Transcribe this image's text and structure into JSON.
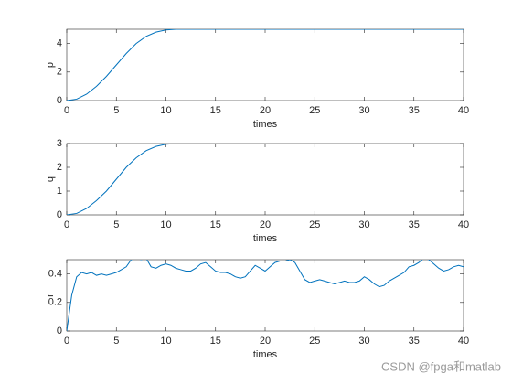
{
  "chart_data": [
    {
      "type": "line",
      "xlabel": "times",
      "ylabel": "p",
      "x": [
        0,
        1,
        2,
        3,
        4,
        5,
        6,
        7,
        8,
        9,
        10,
        11,
        12,
        13,
        14,
        15,
        16,
        17,
        18,
        19,
        20,
        21,
        22,
        23,
        24,
        25,
        26,
        27,
        28,
        29,
        30,
        31,
        32,
        33,
        34,
        35,
        36,
        37,
        38,
        39,
        40
      ],
      "series": [
        {
          "color": "#0072bd",
          "values": [
            0,
            0.1,
            0.45,
            1.0,
            1.7,
            2.5,
            3.3,
            4.0,
            4.5,
            4.8,
            4.95,
            5,
            5,
            5,
            5,
            5,
            5,
            5,
            5,
            5,
            5,
            5,
            5,
            5,
            5,
            5,
            5,
            5,
            5,
            5,
            5,
            5,
            5,
            5,
            5,
            5,
            5,
            5,
            5,
            5,
            5
          ]
        }
      ],
      "xlim": [
        0,
        40
      ],
      "xticks": [
        0,
        5,
        10,
        15,
        20,
        25,
        30,
        35,
        40
      ],
      "ylim": [
        0,
        5
      ],
      "yticks": [
        0,
        2,
        4
      ]
    },
    {
      "type": "line",
      "xlabel": "times",
      "ylabel": "q",
      "x": [
        0,
        1,
        2,
        3,
        4,
        5,
        6,
        7,
        8,
        9,
        10,
        11,
        12,
        13,
        14,
        15,
        16,
        17,
        18,
        19,
        20,
        21,
        22,
        23,
        24,
        25,
        26,
        27,
        28,
        29,
        30,
        31,
        32,
        33,
        34,
        35,
        36,
        37,
        38,
        39,
        40
      ],
      "series": [
        {
          "color": "#0072bd",
          "values": [
            0,
            0.06,
            0.27,
            0.6,
            1.0,
            1.5,
            2.0,
            2.4,
            2.7,
            2.88,
            2.97,
            3,
            3,
            3,
            3,
            3,
            3,
            3,
            3,
            3,
            3,
            3,
            3,
            3,
            3,
            3,
            3,
            3,
            3,
            3,
            3,
            3,
            3,
            3,
            3,
            3,
            3,
            3,
            3,
            3,
            3
          ]
        }
      ],
      "xlim": [
        0,
        40
      ],
      "xticks": [
        0,
        5,
        10,
        15,
        20,
        25,
        30,
        35,
        40
      ],
      "ylim": [
        0,
        3
      ],
      "yticks": [
        0,
        1,
        2,
        3
      ]
    },
    {
      "type": "line",
      "xlabel": "times",
      "ylabel": "r",
      "x": [
        0,
        0.5,
        1,
        1.5,
        2,
        2.5,
        3,
        3.5,
        4,
        4.5,
        5,
        5.5,
        6,
        6.5,
        7,
        7.5,
        8,
        8.5,
        9,
        9.5,
        10,
        10.5,
        11,
        11.5,
        12,
        12.5,
        13,
        13.5,
        14,
        14.5,
        15,
        15.5,
        16,
        16.5,
        17,
        17.5,
        18,
        18.5,
        19,
        19.5,
        20,
        20.5,
        21,
        21.5,
        22,
        22.5,
        23,
        23.5,
        24,
        24.5,
        25,
        25.5,
        26,
        26.5,
        27,
        27.5,
        28,
        28.5,
        29,
        29.5,
        30,
        30.5,
        31,
        31.5,
        32,
        32.5,
        33,
        33.5,
        34,
        34.5,
        35,
        35.5,
        36,
        36.5,
        37,
        37.5,
        38,
        38.5,
        39,
        39.5,
        40
      ],
      "series": [
        {
          "color": "#0072bd",
          "values": [
            0,
            0.25,
            0.38,
            0.41,
            0.4,
            0.41,
            0.39,
            0.4,
            0.39,
            0.4,
            0.41,
            0.43,
            0.45,
            0.5,
            0.51,
            0.5,
            0.51,
            0.45,
            0.44,
            0.46,
            0.47,
            0.46,
            0.44,
            0.43,
            0.42,
            0.42,
            0.44,
            0.47,
            0.48,
            0.45,
            0.42,
            0.41,
            0.41,
            0.4,
            0.38,
            0.37,
            0.38,
            0.42,
            0.46,
            0.44,
            0.42,
            0.45,
            0.48,
            0.49,
            0.49,
            0.5,
            0.48,
            0.42,
            0.36,
            0.34,
            0.35,
            0.36,
            0.35,
            0.34,
            0.33,
            0.34,
            0.35,
            0.34,
            0.34,
            0.35,
            0.38,
            0.36,
            0.33,
            0.31,
            0.32,
            0.35,
            0.37,
            0.39,
            0.41,
            0.45,
            0.46,
            0.48,
            0.51,
            0.5,
            0.47,
            0.44,
            0.42,
            0.43,
            0.45,
            0.46,
            0.45
          ]
        }
      ],
      "xlim": [
        0,
        40
      ],
      "xticks": [
        0,
        5,
        10,
        15,
        20,
        25,
        30,
        35,
        40
      ],
      "ylim": [
        0,
        0.5
      ],
      "yticks": [
        0,
        0.2,
        0.4
      ]
    }
  ],
  "watermark": "CSDN @fpga和matlab"
}
